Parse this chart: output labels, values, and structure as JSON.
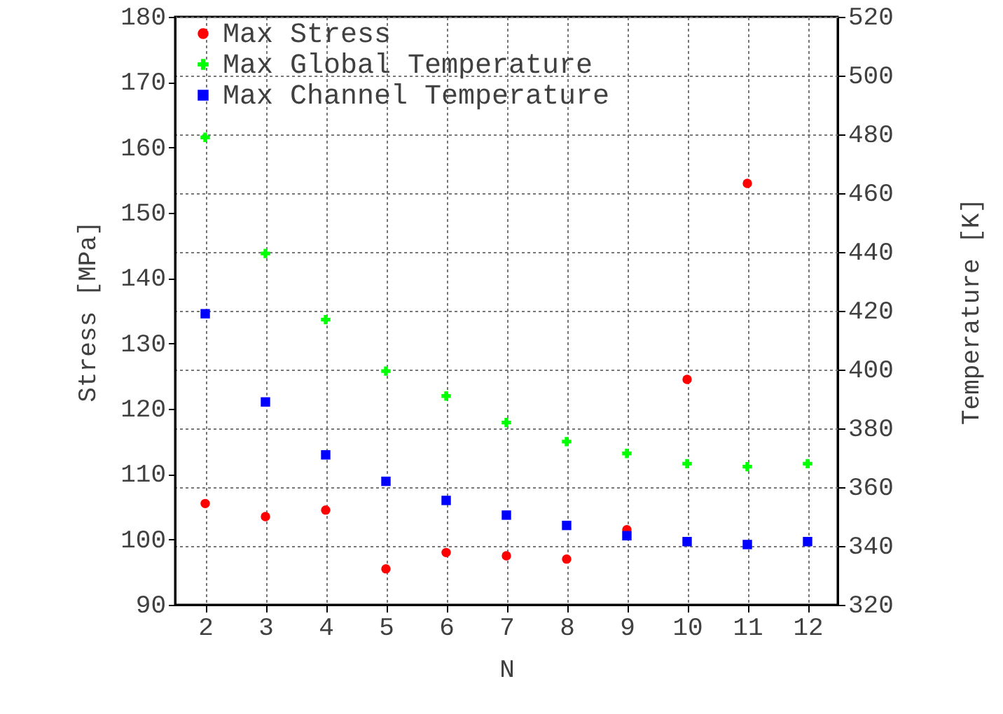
{
  "chart_data": {
    "type": "scatter",
    "xlabel": "N",
    "ylabel": "Stress [MPa]",
    "y2label": "Temperature [K]",
    "x": [
      2,
      3,
      4,
      5,
      6,
      7,
      8,
      9,
      10,
      11,
      12
    ],
    "series": [
      {
        "name": "Max Stress",
        "color": "#ff0000",
        "marker": "circle",
        "values": [
          105.5,
          103.5,
          104.5,
          95.5,
          98,
          97.5,
          97,
          101.5,
          124.5,
          154.5,
          null
        ]
      },
      {
        "name": "Max Global Temperature",
        "color": "#00ff00",
        "marker": "cross",
        "axis": "y2",
        "values": [
          479,
          439.5,
          417,
          399.5,
          391,
          382,
          375.5,
          371.5,
          368,
          367,
          368
        ]
      },
      {
        "name": "Max Channel Temperature",
        "color": "#0000ff",
        "marker": "square",
        "axis": "y2",
        "values": [
          419,
          389,
          371,
          362,
          355.5,
          350.5,
          347,
          343.5,
          341.5,
          340.5,
          341.5
        ]
      }
    ],
    "xlim": [
      1.5,
      12.5
    ],
    "xticks": [
      2,
      3,
      4,
      5,
      6,
      7,
      8,
      9,
      10,
      11,
      12
    ],
    "ylim": [
      90,
      180
    ],
    "yticks": [
      90,
      100,
      110,
      120,
      130,
      140,
      150,
      160,
      170,
      180
    ],
    "y2lim": [
      320,
      520
    ],
    "y2ticks": [
      320,
      340,
      360,
      380,
      400,
      420,
      440,
      460,
      480,
      500,
      520
    ],
    "grid": true,
    "legend": "top left"
  }
}
